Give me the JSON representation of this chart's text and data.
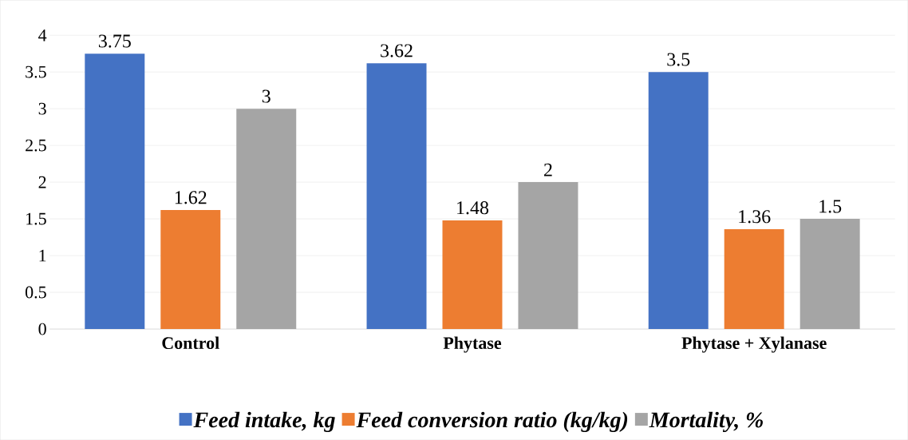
{
  "chart_data": {
    "type": "bar",
    "categories": [
      "Control",
      "Phytase",
      "Phytase + Xylanase"
    ],
    "series": [
      {
        "name": "Feed intake, kg",
        "color": "#4472c4",
        "values": [
          3.75,
          3.62,
          3.5
        ]
      },
      {
        "name": "Feed conversion ratio (kg/kg)",
        "color": "#ed7d31",
        "values": [
          1.62,
          1.48,
          1.36
        ]
      },
      {
        "name": "Mortality, %",
        "color": "#a5a5a5",
        "values": [
          3,
          2,
          1.5
        ]
      }
    ],
    "ylim": [
      0,
      4
    ],
    "yticks": [
      0,
      0.5,
      1,
      1.5,
      2,
      2.5,
      3,
      3.5,
      4
    ],
    "grid": "y",
    "legend": "bottom",
    "data_labels": true
  }
}
